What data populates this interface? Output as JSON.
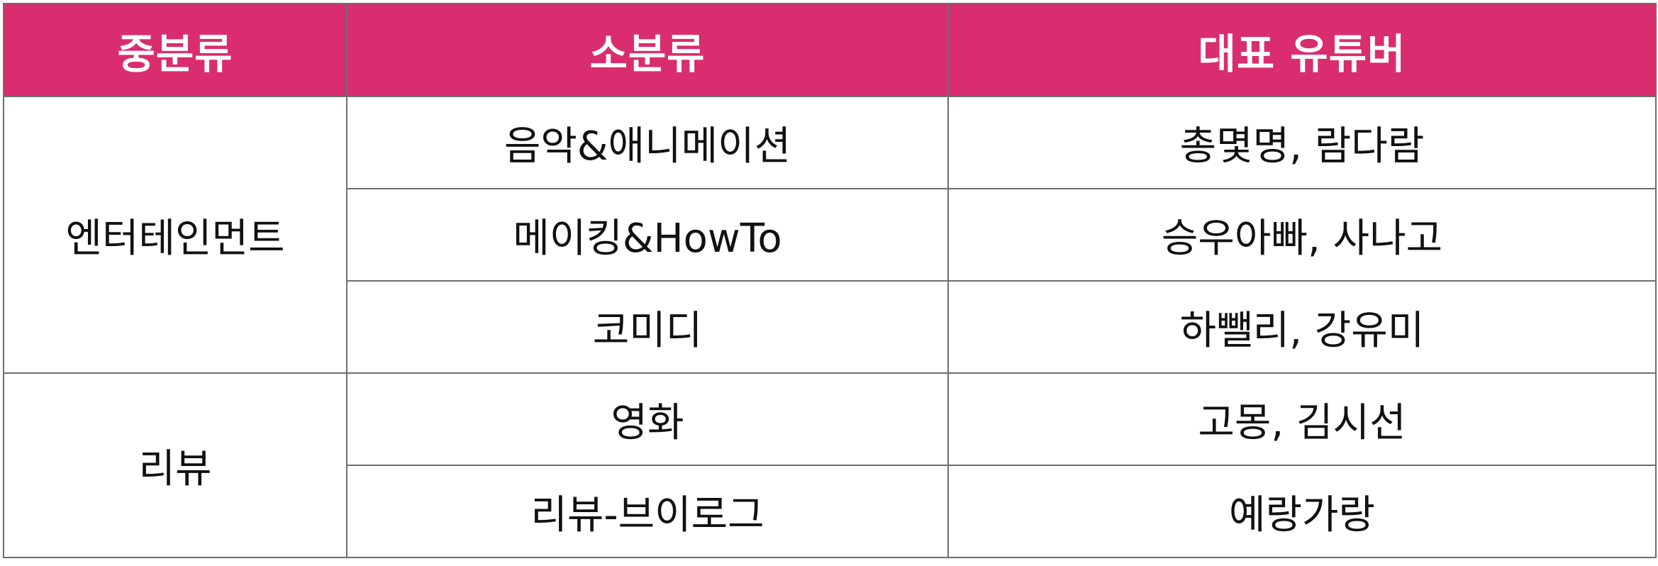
{
  "table": {
    "headers": [
      "중분류",
      "소분류",
      "대표 유튜버"
    ],
    "groups": [
      {
        "category": "엔터테인먼트",
        "rows": [
          {
            "subcategory": "음악&애니메이션",
            "youtubers": "총몇명, 람다람"
          },
          {
            "subcategory": "메이킹&HowTo",
            "youtubers": "승우아빠, 사나고"
          },
          {
            "subcategory": "코미디",
            "youtubers": "하뺄리, 강유미"
          }
        ]
      },
      {
        "category": "리뷰",
        "rows": [
          {
            "subcategory": "영화",
            "youtubers": "고몽, 김시선"
          },
          {
            "subcategory": "리뷰-브이로그",
            "youtubers": "예랑가랑"
          }
        ]
      }
    ],
    "colors": {
      "header_bg": "#d92d70",
      "header_text": "#ffffff",
      "border": "#6e6e6e"
    }
  }
}
